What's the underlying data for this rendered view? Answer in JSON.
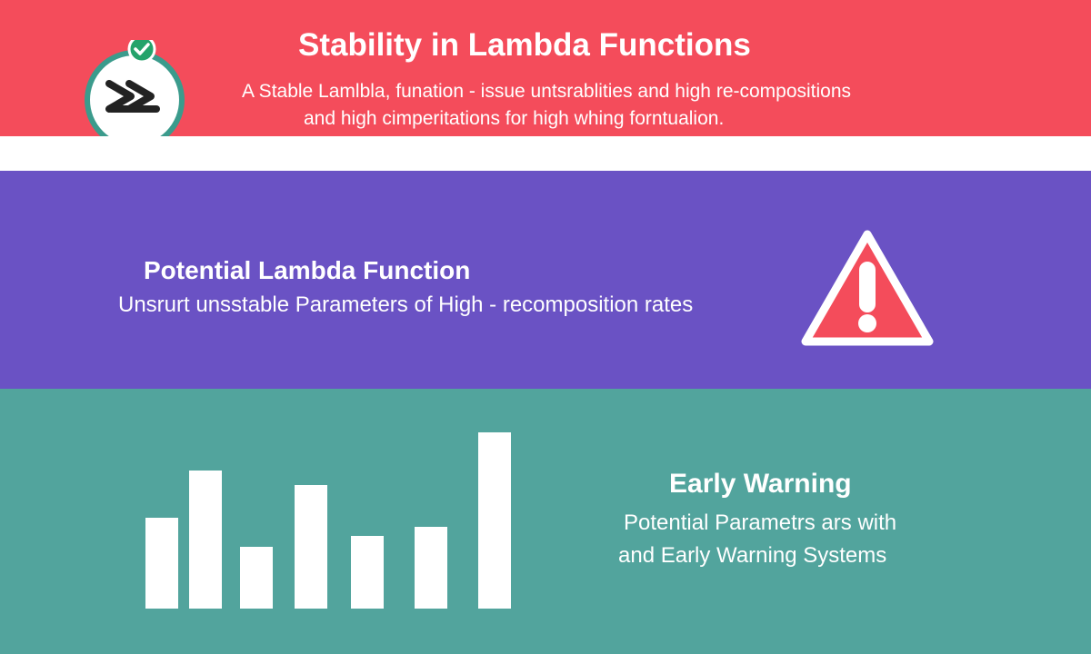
{
  "header": {
    "title": "Stability in Lambda Functions",
    "subtitle_line1": "A Stable Lamlbla, funation - issue untsrablities and high re-compositions",
    "subtitle_line2": "and high cimperitations for high whing forntualion.",
    "logo_icon": "lambda-double-chevron-check-icon"
  },
  "middle": {
    "title": "Potential Lambda Function",
    "subtitle": "Unsrurt unsstable Parameters of High - recomposition rates",
    "alert_icon": "warning-triangle-icon"
  },
  "bottom": {
    "title": "Early Warning",
    "subtitle_line1": "Potential Parametrs ars with",
    "subtitle_line2": "and Early Warning Systems",
    "chart_icon": "bar-chart-icon",
    "bar_levels": [
      0.5,
      0.76,
      0.34,
      0.68,
      0.4,
      0.45,
      0.97
    ]
  },
  "colors": {
    "red": "#f44c5b",
    "purple": "#6a52c4",
    "teal": "#52a49d",
    "white": "#ffffff",
    "green_check": "#24a36b",
    "dark_icon": "#222222",
    "badge_ring": "#3b9b8c"
  }
}
